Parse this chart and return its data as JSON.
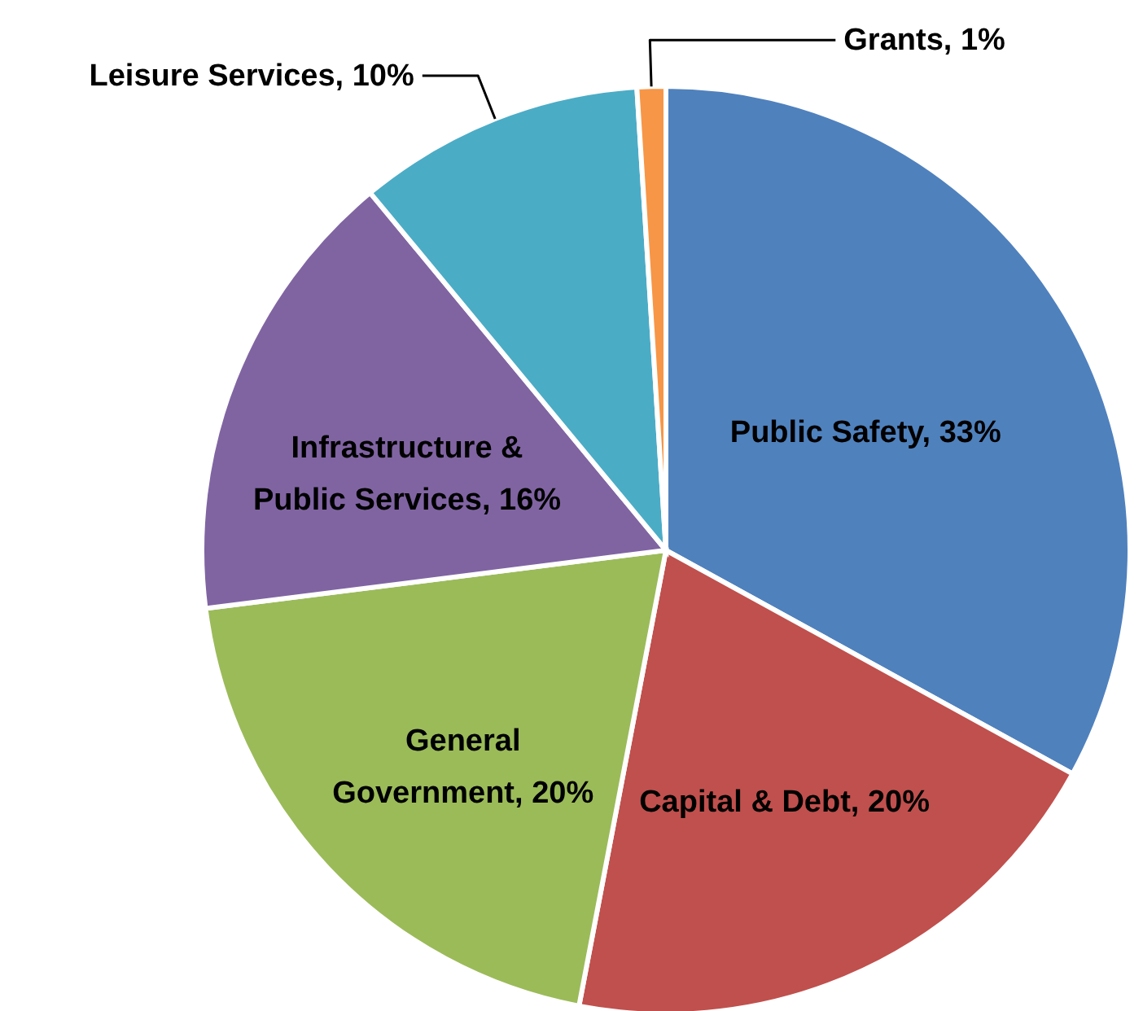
{
  "chart_data": {
    "type": "pie",
    "categories": [
      "Public Safety",
      "Capital & Debt",
      "General Government",
      "Infrastructure & Public Services",
      "Leisure Services",
      "Grants"
    ],
    "values": [
      33,
      20,
      20,
      16,
      10,
      1
    ],
    "value_labels": [
      "33%",
      "20%",
      "20%",
      "16%",
      "10%",
      "1%"
    ],
    "colors": [
      "#4f81bd",
      "#c0504d",
      "#9bbb59",
      "#8064a2",
      "#4bacc6",
      "#f79646"
    ]
  }
}
